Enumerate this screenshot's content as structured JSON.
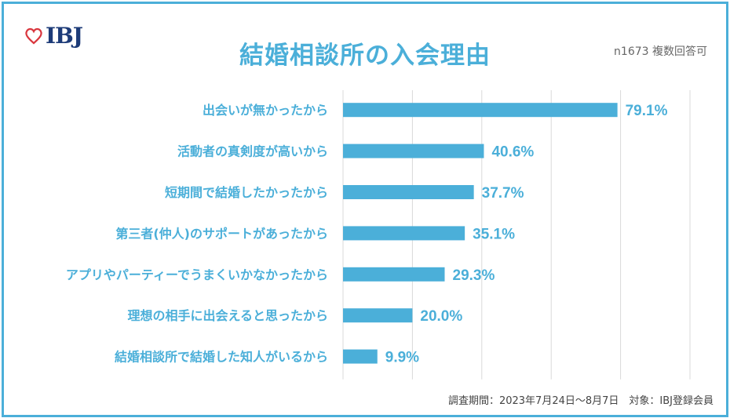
{
  "logo": {
    "text": "IBJ",
    "icon": "heart-icon",
    "color": "#1d3b78",
    "icon_color": "#d9363e"
  },
  "title": "結婚相談所の入会理由",
  "note": "n1673 複数回答可",
  "footer": "調査期間：2023年7月24日～8月7日　対象：IBJ登録会員",
  "colors": {
    "bar": "#4bafd9",
    "label": "#4bafd9",
    "border": "#4bafd9",
    "grid": "#d9d9d9"
  },
  "chart_data": {
    "type": "bar",
    "orientation": "horizontal",
    "title": "結婚相談所の入会理由",
    "categories": [
      "出会いが無かったから",
      "活動者の真剣度が高いから",
      "短期間で結婚したかったから",
      "第三者(仲人)のサポートがあったから",
      "アプリやパーティーでうまくいかなかったから",
      "理想の相手に出会えると思ったから",
      "結婚相談所で結婚した知人がいるから"
    ],
    "values": [
      79.1,
      40.6,
      37.7,
      35.1,
      29.3,
      20.0,
      9.9
    ],
    "value_labels": [
      "79.1%",
      "40.6%",
      "37.7%",
      "35.1%",
      "29.3%",
      "20.0%",
      "9.9%"
    ],
    "xlim": [
      0,
      100
    ],
    "grid": true,
    "x_tick_labels_shown": false
  }
}
